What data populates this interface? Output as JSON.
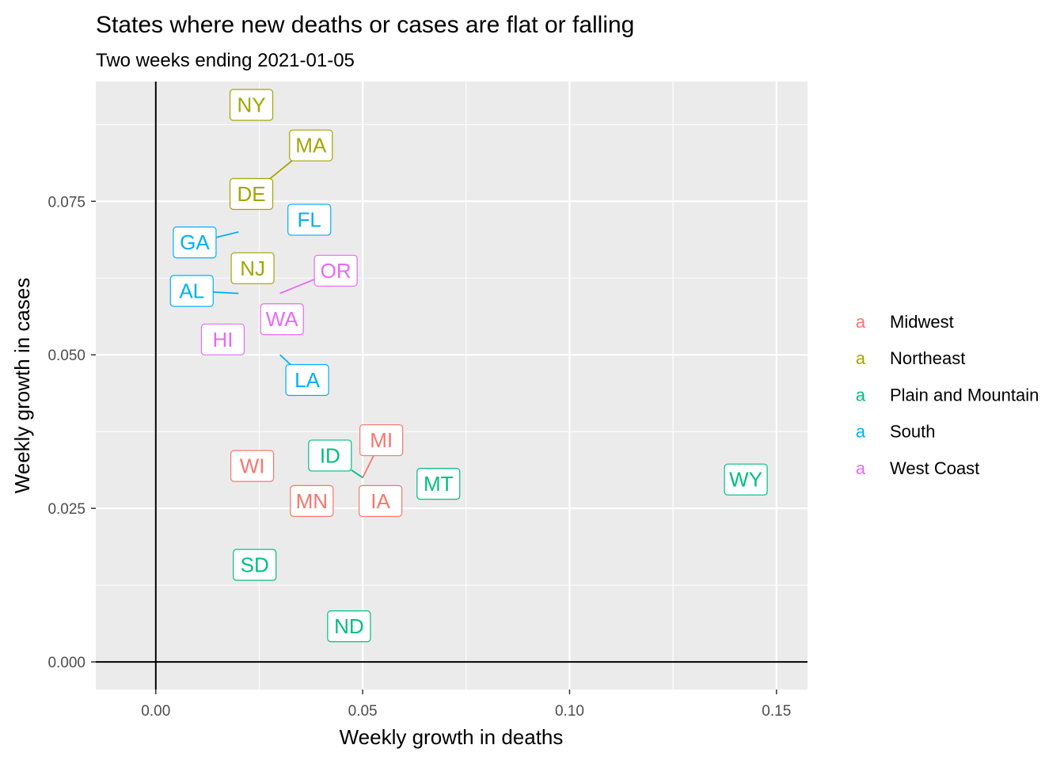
{
  "chart_data": {
    "type": "scatter",
    "title": "States where new deaths or cases are flat or falling",
    "subtitle": "Two weeks ending 2021-01-05",
    "xlabel": "Weekly growth in deaths",
    "ylabel": "Weekly growth in cases",
    "xlim": [
      -0.0145,
      0.1575
    ],
    "ylim": [
      -0.0045,
      0.0945
    ],
    "x_ticks": [
      "0.00",
      "0.05",
      "0.10",
      "0.15"
    ],
    "y_ticks": [
      "0.000",
      "0.025",
      "0.050",
      "0.075"
    ],
    "grid": true,
    "reference_lines": [
      "x = 0",
      "y = 0"
    ],
    "legend_position": "right",
    "legend_key_glyph": "a",
    "colors": {
      "Midwest": "#F8766D",
      "Northeast": "#A3A500",
      "Plain and Mountain": "#00BF7D",
      "South": "#00B0F6",
      "West Coast": "#E76BF3"
    },
    "series": [
      {
        "name": "Midwest",
        "points": [
          {
            "label": "WI",
            "x": 0.0233,
            "y": 0.0319
          },
          {
            "label": "MN",
            "x": 0.0377,
            "y": 0.0262
          },
          {
            "label": "IA",
            "x": 0.0543,
            "y": 0.0262
          },
          {
            "label": "MI",
            "x": 0.05,
            "y": 0.03,
            "label_x": 0.0545,
            "label_y": 0.0361
          }
        ]
      },
      {
        "name": "Northeast",
        "points": [
          {
            "label": "NY",
            "x": 0.0231,
            "y": 0.0907
          },
          {
            "label": "MA",
            "x": 0.03,
            "y": 0.08,
            "label_x": 0.0375,
            "label_y": 0.0841
          },
          {
            "label": "DE",
            "x": 0.03,
            "y": 0.08,
            "label_x": 0.0231,
            "label_y": 0.0762
          },
          {
            "label": "NJ",
            "x": 0.0234,
            "y": 0.0641
          }
        ]
      },
      {
        "name": "Plain and Mountain",
        "points": [
          {
            "label": "ID",
            "x": 0.05,
            "y": 0.03,
            "label_x": 0.0421,
            "label_y": 0.0336
          },
          {
            "label": "MT",
            "x": 0.0683,
            "y": 0.029
          },
          {
            "label": "WY",
            "x": 0.1426,
            "y": 0.0297
          },
          {
            "label": "SD",
            "x": 0.0239,
            "y": 0.0158
          },
          {
            "label": "ND",
            "x": 0.0467,
            "y": 0.0058
          }
        ]
      },
      {
        "name": "South",
        "points": [
          {
            "label": "FL",
            "x": 0.0371,
            "y": 0.072
          },
          {
            "label": "GA",
            "x": 0.02,
            "y": 0.07,
            "label_x": 0.0094,
            "label_y": 0.0683
          },
          {
            "label": "AL",
            "x": 0.02,
            "y": 0.06,
            "label_x": 0.0087,
            "label_y": 0.0604
          },
          {
            "label": "LA",
            "x": 0.03,
            "y": 0.05,
            "label_x": 0.0366,
            "label_y": 0.0459
          }
        ]
      },
      {
        "name": "West Coast",
        "points": [
          {
            "label": "OR",
            "x": 0.03,
            "y": 0.06,
            "label_x": 0.0435,
            "label_y": 0.0637
          },
          {
            "label": "WA",
            "x": 0.0305,
            "y": 0.0558
          },
          {
            "label": "HI",
            "x": 0.0162,
            "y": 0.0525
          }
        ]
      }
    ]
  }
}
